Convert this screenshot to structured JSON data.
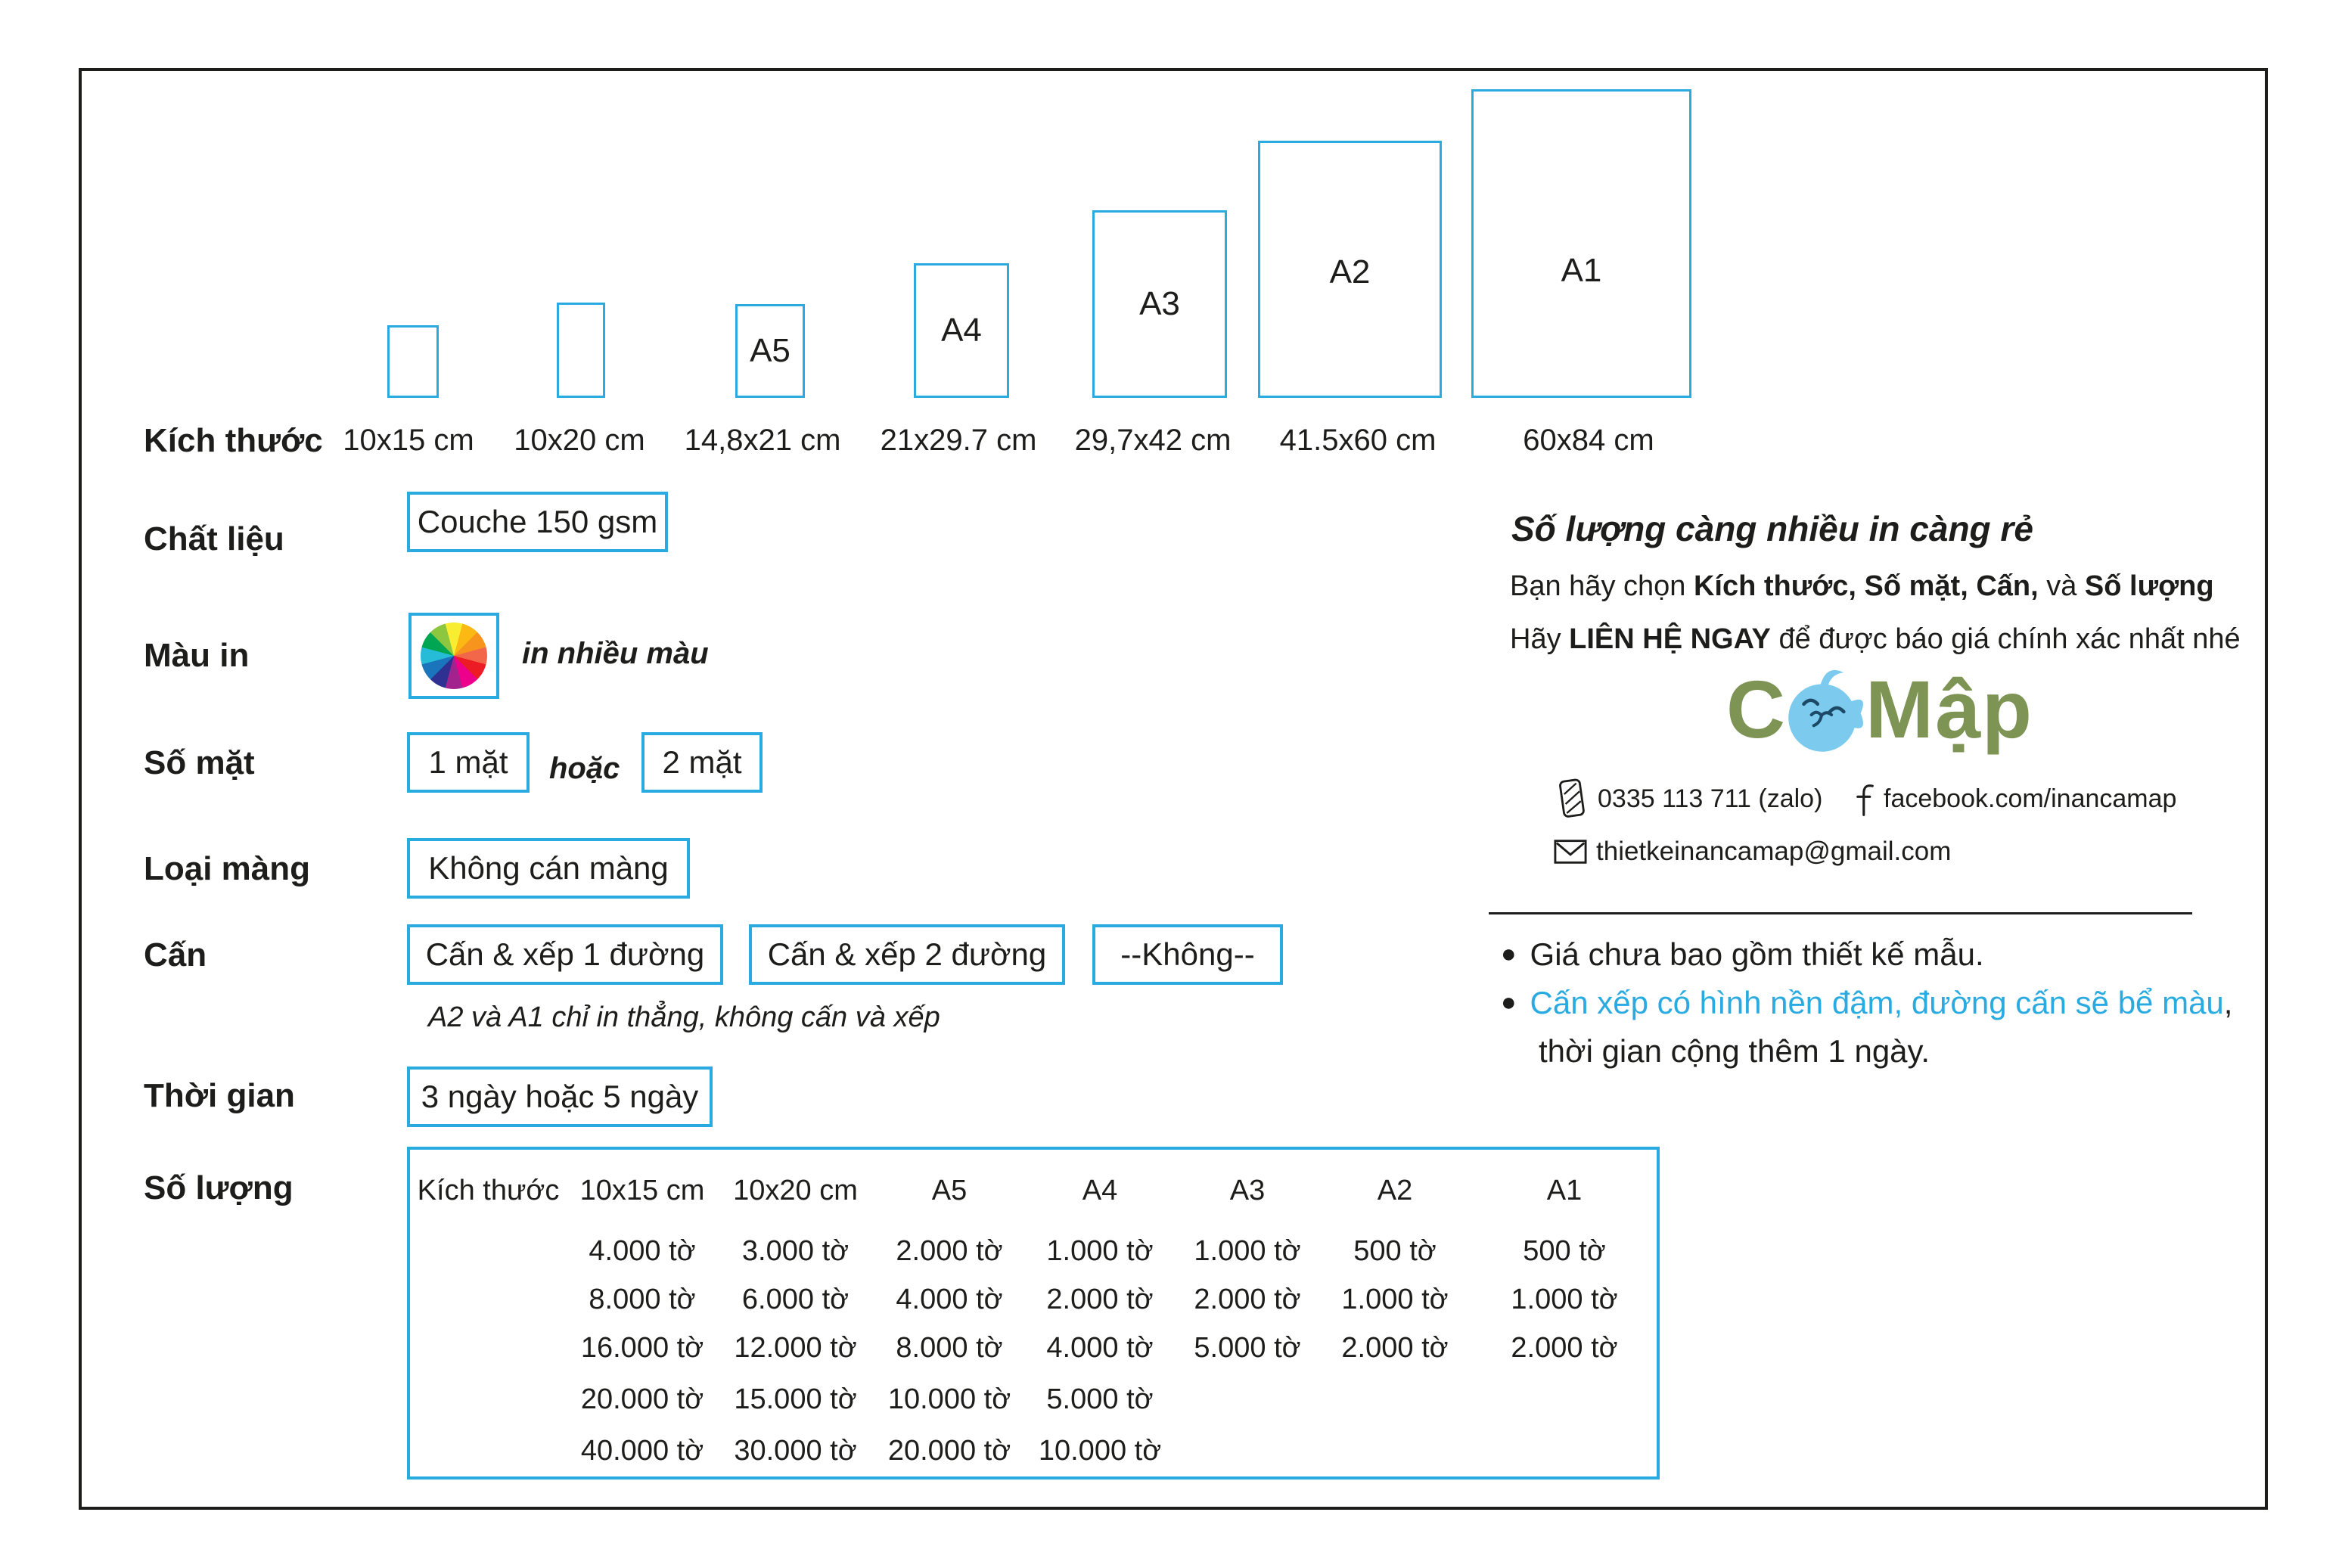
{
  "colors": {
    "accent": "#29ABE2",
    "ink": "#1D1D1B",
    "logo_green": "#7E9455",
    "fish_blue": "#7CCBEF"
  },
  "sizes": {
    "label": "Kích thước",
    "items": [
      {
        "code": "",
        "dim": "10x15 cm"
      },
      {
        "code": "",
        "dim": "10x20 cm"
      },
      {
        "code": "A5",
        "dim": "14,8x21 cm"
      },
      {
        "code": "A4",
        "dim": "21x29.7 cm"
      },
      {
        "code": "A3",
        "dim": "29,7x42 cm"
      },
      {
        "code": "A2",
        "dim": "41.5x60 cm"
      },
      {
        "code": "A1",
        "dim": "60x84 cm"
      }
    ]
  },
  "material": {
    "label": "Chất liệu",
    "value": "Couche 150 gsm"
  },
  "print_color": {
    "label": "Màu in",
    "value": "in nhiều màu",
    "icon": "color-wheel-icon"
  },
  "sides": {
    "label": "Số mặt",
    "option_1": "1 mặt",
    "separator": "hoặc",
    "option_2": "2 mặt"
  },
  "lamination": {
    "label": "Loại màng",
    "value": "Không cán màng"
  },
  "crease": {
    "label": "Cấn",
    "option_1": "Cấn & xếp 1 đường",
    "option_2": "Cấn & xếp 2 đường",
    "option_3": "--Không--",
    "note": "A2 và A1 chỉ in thẳng, không cấn và xếp"
  },
  "turnaround": {
    "label": "Thời gian",
    "value": "3 ngày hoặc 5 ngày"
  },
  "quantity": {
    "label": "Số lượng",
    "table": {
      "headers": [
        "Kích thước",
        "10x15 cm",
        "10x20 cm",
        "A5",
        "A4",
        "A3",
        "A2",
        "A1"
      ],
      "rows": [
        [
          "",
          "4.000 tờ",
          "3.000 tờ",
          "2.000 tờ",
          "1.000 tờ",
          "1.000 tờ",
          "500 tờ",
          "500 tờ"
        ],
        [
          "",
          "8.000 tờ",
          "6.000 tờ",
          "4.000 tờ",
          "2.000 tờ",
          "2.000 tờ",
          "1.000 tờ",
          "1.000 tờ"
        ],
        [
          "",
          "16.000 tờ",
          "12.000 tờ",
          "8.000 tờ",
          "4.000 tờ",
          "5.000 tờ",
          "2.000 tờ",
          "2.000 tờ"
        ],
        [
          "",
          "20.000 tờ",
          "15.000 tờ",
          "10.000 tờ",
          "5.000 tờ",
          "",
          "",
          ""
        ],
        [
          "",
          "40.000 tờ",
          "30.000 tờ",
          "20.000 tờ",
          "10.000 tờ",
          "",
          "",
          ""
        ]
      ]
    }
  },
  "promo": {
    "title": "Số lượng càng nhiều in càng rẻ",
    "line2_pre": "Bạn hãy chọn ",
    "line2_bold": "Kích thước, Số mặt, Cấn,",
    "line2_mid": " và ",
    "line2_bold2": "Số lượng",
    "line3_pre": "Hãy ",
    "line3_bold": "LIÊN HỆ NGAY",
    "line3_post": " để được báo giá chính xác nhất nhé"
  },
  "brand": {
    "logo_c": "C",
    "logo_rest": "Mập"
  },
  "contact": {
    "phone": "0335 113 711 (zalo)",
    "facebook": "facebook.com/inancamap",
    "email": "thietkeinancamap@gmail.com"
  },
  "notes": {
    "bullet": "●",
    "item_1": "Giá chưa bao gồm thiết kế mẫu.",
    "item_2_highlight": "Cấn xếp có hình nền đậm, đường cấn sẽ bể màu",
    "item_2_tail": ",",
    "item_2_line2": "thời gian cộng thêm 1 ngày."
  }
}
